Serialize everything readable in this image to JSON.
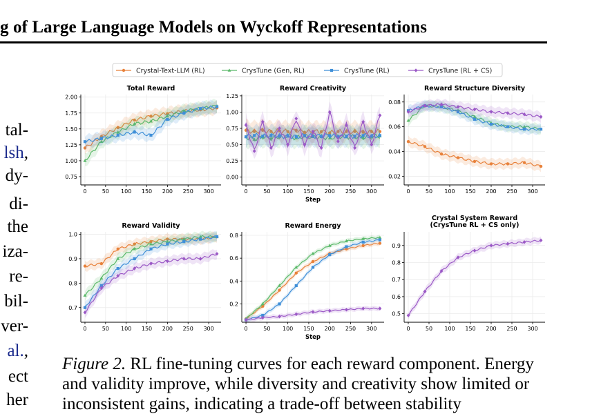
{
  "header": {
    "title": "g of Large Language Models on Wyckoff Representations"
  },
  "left_column": {
    "lines": [
      {
        "text": "tal-",
        "link": false
      },
      {
        "text": "lsh",
        "link": true,
        "suffix": ","
      },
      {
        "text": "dy-",
        "link": false
      },
      {
        "text": "di-",
        "link": false
      },
      {
        "text": "the",
        "link": false
      },
      {
        "text": "iza-",
        "link": false
      },
      {
        "text": "re-",
        "link": false
      },
      {
        "text": "bil-",
        "link": false
      },
      {
        "text": "ver-",
        "link": false
      },
      {
        "text": "al.",
        "link": true,
        "suffix": ","
      },
      {
        "text": "ect",
        "link": false
      },
      {
        "text": "her",
        "link": false
      }
    ]
  },
  "legend": [
    {
      "name": "Crystal-Text-LLM (RL)",
      "color": "#e8813a",
      "marker": "circle"
    },
    {
      "name": "CrysTune (Gen, RL)",
      "color": "#5bb96a",
      "marker": "triangle"
    },
    {
      "name": "CrysTune (RL)",
      "color": "#3f8fd8",
      "marker": "square"
    },
    {
      "name": "CrysTune (RL + CS)",
      "color": "#9b59c6",
      "marker": "diamond"
    }
  ],
  "chart_data": [
    {
      "type": "line",
      "title": "Total Reward",
      "xlabel": "",
      "xlim": [
        -10,
        330
      ],
      "ylim": [
        0.62,
        2.04
      ],
      "xticks": [
        0,
        50,
        100,
        150,
        200,
        250,
        300
      ],
      "yticks": [
        0.75,
        1.0,
        1.25,
        1.5,
        1.75,
        2.0
      ],
      "yfmt": 2,
      "x": [
        0,
        40,
        80,
        120,
        160,
        200,
        240,
        280,
        320
      ],
      "series": [
        {
          "name": "Crystal-Text-LLM (RL)",
          "values": [
            1.2,
            1.38,
            1.52,
            1.64,
            1.7,
            1.74,
            1.78,
            1.8,
            1.83
          ]
        },
        {
          "name": "CrysTune (Gen, RL)",
          "values": [
            1.0,
            1.3,
            1.45,
            1.58,
            1.62,
            1.7,
            1.78,
            1.82,
            1.86
          ]
        },
        {
          "name": "CrysTune (RL)",
          "values": [
            1.3,
            1.35,
            1.4,
            1.45,
            1.4,
            1.65,
            1.75,
            1.82,
            1.85
          ]
        }
      ],
      "band": 0.1
    },
    {
      "type": "line",
      "title": "Reward Creativity",
      "xlabel": "Step",
      "xlim": [
        -10,
        330
      ],
      "ylim": [
        -0.12,
        1.27
      ],
      "xticks": [
        0,
        50,
        100,
        150,
        200,
        250,
        300
      ],
      "yticks": [
        0.0,
        0.25,
        0.5,
        0.75,
        1.0,
        1.25
      ],
      "yfmt": 2,
      "x": [
        0,
        20,
        40,
        60,
        80,
        100,
        120,
        140,
        160,
        180,
        200,
        220,
        240,
        260,
        280,
        300,
        320
      ],
      "series": [
        {
          "name": "Crystal-Text-LLM (RL)",
          "values": [
            0.72,
            0.7,
            0.72,
            0.7,
            0.71,
            0.7,
            0.72,
            0.69,
            0.7,
            0.7,
            0.68,
            0.7,
            0.7,
            0.7,
            0.69,
            0.7,
            0.7
          ]
        },
        {
          "name": "CrysTune (Gen, RL)",
          "values": [
            0.62,
            0.58,
            0.62,
            0.6,
            0.62,
            0.64,
            0.6,
            0.63,
            0.62,
            0.62,
            0.6,
            0.63,
            0.62,
            0.62,
            0.61,
            0.62,
            0.63
          ]
        },
        {
          "name": "CrysTune (RL)",
          "values": [
            0.62,
            0.64,
            0.63,
            0.64,
            0.63,
            0.63,
            0.62,
            0.64,
            0.63,
            0.63,
            0.64,
            0.62,
            0.63,
            0.63,
            0.64,
            0.63,
            0.64
          ]
        },
        {
          "name": "CrysTune (RL + CS)",
          "values": [
            0.8,
            0.4,
            0.85,
            0.45,
            0.75,
            0.5,
            0.9,
            0.5,
            0.7,
            0.45,
            1.0,
            0.55,
            0.8,
            0.45,
            0.85,
            0.5,
            0.95
          ]
        }
      ],
      "band": 0.15
    },
    {
      "type": "line",
      "title": "Reward Structure Diversity",
      "xlabel": "",
      "xlim": [
        -10,
        330
      ],
      "ylim": [
        0.013,
        0.086
      ],
      "xticks": [
        0,
        50,
        100,
        150,
        200,
        250,
        300
      ],
      "yticks": [
        0.02,
        0.04,
        0.06,
        0.08
      ],
      "yfmt": 2,
      "x": [
        0,
        40,
        80,
        120,
        160,
        200,
        240,
        280,
        320
      ],
      "series": [
        {
          "name": "Crystal-Text-LLM (RL)",
          "values": [
            0.048,
            0.044,
            0.038,
            0.035,
            0.032,
            0.03,
            0.03,
            0.031,
            0.028
          ]
        },
        {
          "name": "CrysTune (Gen, RL)",
          "values": [
            0.065,
            0.077,
            0.076,
            0.073,
            0.068,
            0.063,
            0.06,
            0.06,
            0.058
          ]
        },
        {
          "name": "CrysTune (RL)",
          "values": [
            0.073,
            0.077,
            0.076,
            0.072,
            0.066,
            0.062,
            0.06,
            0.058,
            0.058
          ]
        },
        {
          "name": "CrysTune (RL + CS)",
          "values": [
            0.072,
            0.077,
            0.078,
            0.076,
            0.074,
            0.072,
            0.071,
            0.07,
            0.068
          ]
        }
      ],
      "band": 0.004
    },
    {
      "type": "line",
      "title": "Reward Validity",
      "xlabel": "",
      "xlim": [
        -10,
        330
      ],
      "ylim": [
        0.64,
        1.01
      ],
      "xticks": [
        0,
        50,
        100,
        150,
        200,
        250,
        300
      ],
      "yticks": [
        0.7,
        0.8,
        0.9,
        1.0
      ],
      "yfmt": 1,
      "x": [
        0,
        40,
        80,
        120,
        160,
        200,
        240,
        280,
        320
      ],
      "series": [
        {
          "name": "Crystal-Text-LLM (RL)",
          "values": [
            0.87,
            0.88,
            0.94,
            0.96,
            0.97,
            0.98,
            0.98,
            0.98,
            0.99
          ]
        },
        {
          "name": "CrysTune (Gen, RL)",
          "values": [
            0.75,
            0.82,
            0.9,
            0.94,
            0.96,
            0.97,
            0.98,
            0.99,
            0.99
          ]
        },
        {
          "name": "CrysTune (RL)",
          "values": [
            0.7,
            0.79,
            0.86,
            0.9,
            0.94,
            0.96,
            0.97,
            0.98,
            0.99
          ]
        },
        {
          "name": "CrysTune (RL + CS)",
          "values": [
            0.68,
            0.78,
            0.83,
            0.86,
            0.88,
            0.89,
            0.9,
            0.9,
            0.92
          ]
        }
      ],
      "band": 0.02
    },
    {
      "type": "line",
      "title": "Reward Energy",
      "xlabel": "Step",
      "xlim": [
        -10,
        330
      ],
      "ylim": [
        0.04,
        0.83
      ],
      "xticks": [
        0,
        50,
        100,
        150,
        200,
        250,
        300
      ],
      "yticks": [
        0.2,
        0.4,
        0.6,
        0.8
      ],
      "yfmt": 1,
      "x": [
        0,
        40,
        80,
        120,
        160,
        200,
        240,
        280,
        320
      ],
      "series": [
        {
          "name": "Crystal-Text-LLM (RL)",
          "values": [
            0.07,
            0.18,
            0.32,
            0.47,
            0.57,
            0.64,
            0.68,
            0.71,
            0.73
          ]
        },
        {
          "name": "CrysTune (Gen, RL)",
          "values": [
            0.07,
            0.2,
            0.36,
            0.52,
            0.64,
            0.71,
            0.75,
            0.77,
            0.78
          ]
        },
        {
          "name": "CrysTune (RL)",
          "values": [
            0.06,
            0.1,
            0.2,
            0.36,
            0.52,
            0.63,
            0.7,
            0.74,
            0.76
          ]
        },
        {
          "name": "CrysTune (RL + CS)",
          "values": [
            0.06,
            0.08,
            0.09,
            0.11,
            0.13,
            0.14,
            0.15,
            0.16,
            0.16
          ]
        }
      ],
      "band": 0.02
    },
    {
      "type": "line",
      "title": "Crystal System Reward\n(CrysTune RL + CS only)",
      "xlabel": "",
      "xlim": [
        -10,
        330
      ],
      "ylim": [
        0.45,
        0.98
      ],
      "xticks": [
        0,
        50,
        100,
        150,
        200,
        250,
        300
      ],
      "yticks": [
        0.5,
        0.6,
        0.7,
        0.8,
        0.9
      ],
      "yfmt": 1,
      "x": [
        0,
        40,
        80,
        120,
        160,
        200,
        240,
        280,
        320
      ],
      "series": [
        {
          "name": "CrysTune (RL + CS)",
          "values": [
            0.49,
            0.63,
            0.75,
            0.83,
            0.87,
            0.9,
            0.91,
            0.92,
            0.93
          ]
        }
      ],
      "band": 0.02
    }
  ],
  "caption": {
    "lead": "Figure 2.",
    "text": " RL fine-tuning curves for each reward component. Energy and validity improve, while diversity and creativity show limited or inconsistent gains, indicating a trade-off between stability"
  }
}
